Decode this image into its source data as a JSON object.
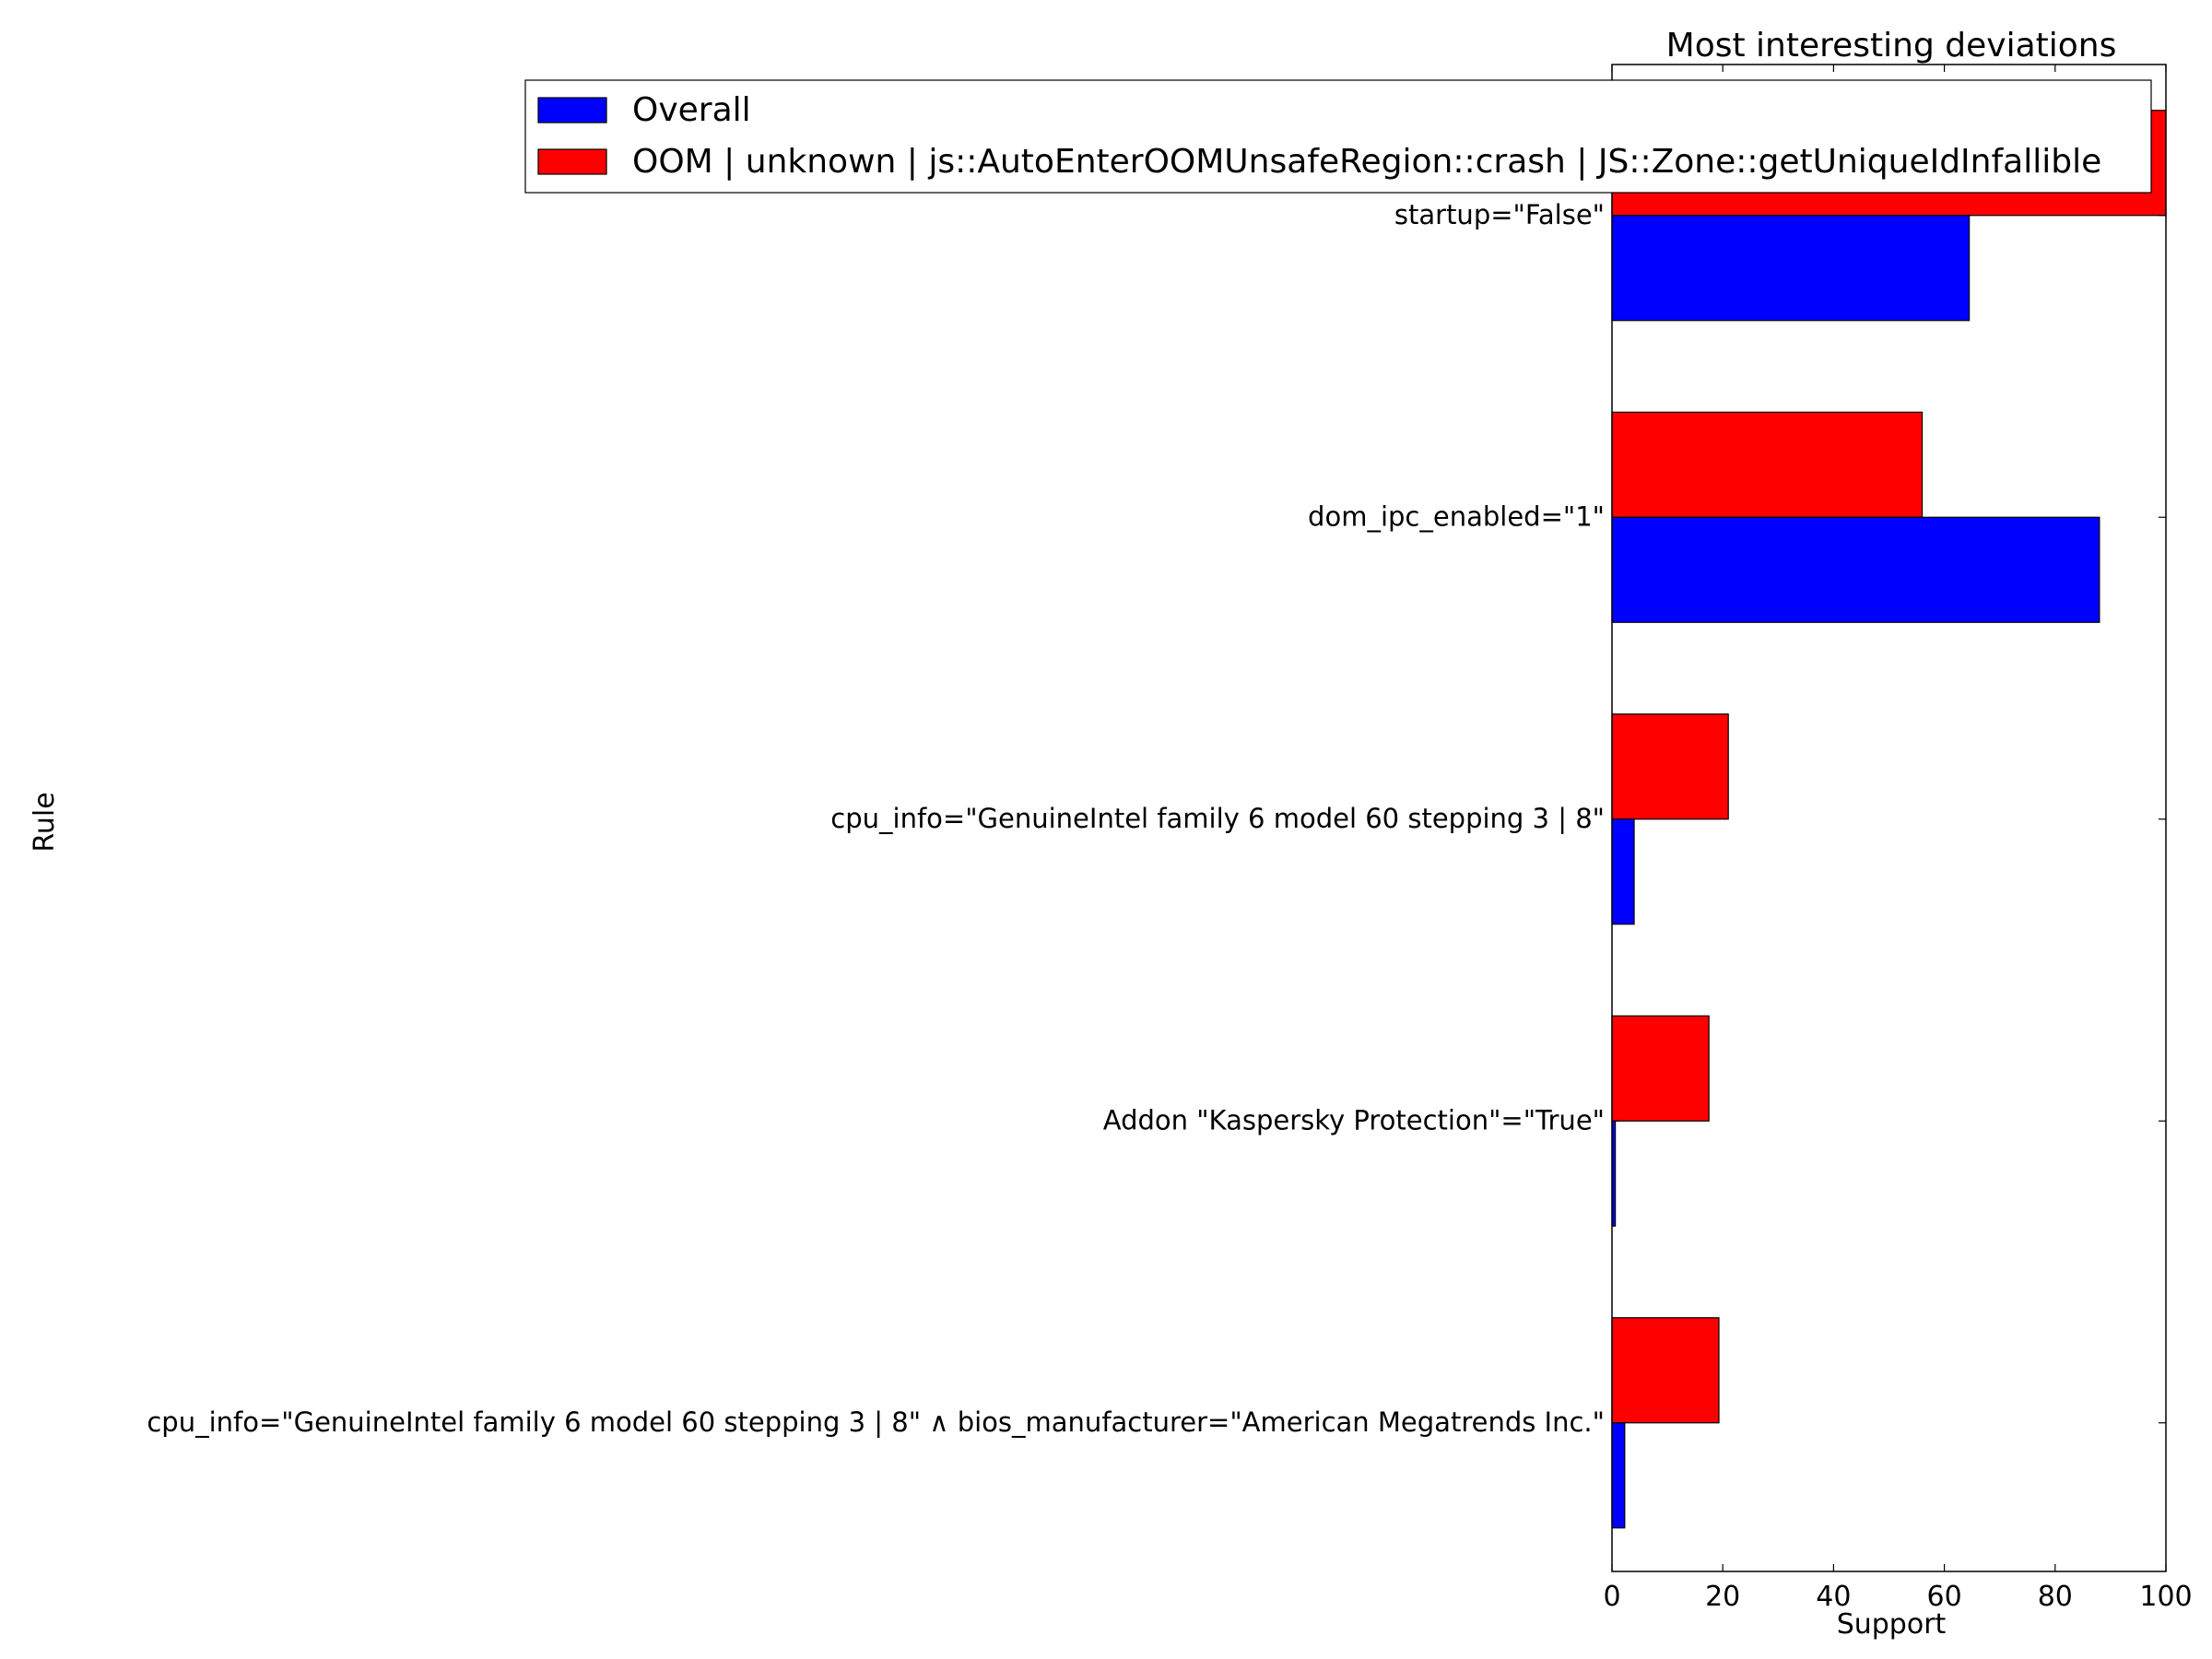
{
  "chart_data": {
    "type": "bar",
    "orientation": "horizontal",
    "title": "Most interesting deviations",
    "xlabel": "Support",
    "ylabel": "Rule",
    "xlim": [
      0,
      100
    ],
    "xticks": [
      0,
      20,
      40,
      60,
      80,
      100
    ],
    "grid": false,
    "legend_position": "top-right",
    "categories": [
      "startup=\"False\"",
      "dom_ipc_enabled=\"1\"",
      "cpu_info=\"GenuineIntel family 6 model 60 stepping 3 | 8\"",
      "Addon \"Kaspersky Protection\"=\"True\"",
      "cpu_info=\"GenuineIntel family 6 model 60 stepping 3 | 8\" ∧ bios_manufacturer=\"American Megatrends Inc.\""
    ],
    "series": [
      {
        "name": "Overall",
        "color": "#0000ff",
        "values": [
          64.5,
          88,
          4,
          0.6,
          2.3
        ]
      },
      {
        "name": "OOM | unknown | js::AutoEnterOOMUnsafeRegion::crash | JS::Zone::getUniqueIdInfallible",
        "color": "#ff0000",
        "values": [
          100,
          56,
          21,
          17.5,
          19.3
        ]
      }
    ]
  }
}
